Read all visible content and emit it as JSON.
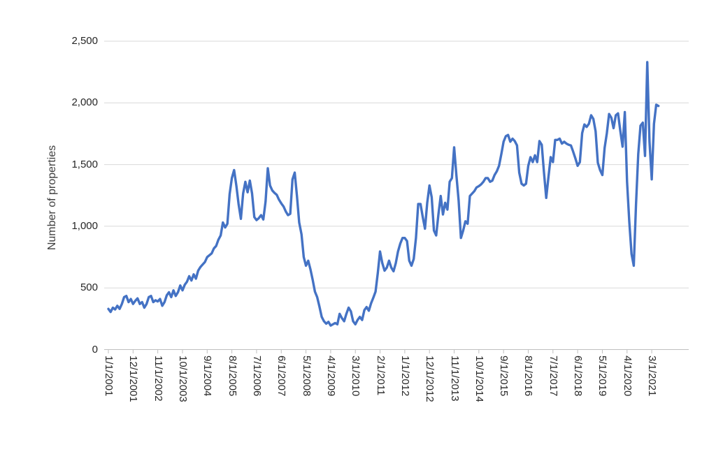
{
  "chart_data": {
    "type": "line",
    "title": "",
    "xlabel": "",
    "ylabel": "Number of properties",
    "ylim": [
      0,
      2500
    ],
    "grid": true,
    "legend": "none",
    "y_tick_labels": [
      "0",
      "500",
      "1,000",
      "1,500",
      "2,000",
      "2,500"
    ],
    "y_tick_values": [
      0,
      500,
      1000,
      1500,
      2000,
      2500
    ],
    "x_tick_labels": [
      "1/1/2001",
      "12/1/2001",
      "11/1/2002",
      "10/1/2003",
      "9/1/2004",
      "8/1/2005",
      "7/1/2006",
      "6/1/2007",
      "5/1/2008",
      "4/1/2009",
      "3/1/2010",
      "2/1/2011",
      "1/1/2012",
      "12/1/2012",
      "11/1/2013",
      "10/1/2014",
      "9/1/2015",
      "8/1/2016",
      "7/1/2017",
      "6/1/2018",
      "5/1/2019",
      "4/1/2020",
      "3/1/2021"
    ],
    "x_tick_month_indices": [
      0,
      11,
      22,
      33,
      44,
      55,
      66,
      77,
      88,
      99,
      110,
      121,
      132,
      143,
      154,
      165,
      176,
      187,
      198,
      209,
      220,
      231,
      242
    ],
    "x_start": "1/1/2001",
    "x_frequency": "monthly",
    "series": [
      {
        "name": "Number of properties",
        "color": "#4472C4",
        "values": [
          330,
          305,
          340,
          325,
          355,
          330,
          370,
          425,
          435,
          385,
          410,
          370,
          395,
          415,
          370,
          385,
          340,
          370,
          425,
          435,
          385,
          400,
          390,
          410,
          355,
          385,
          440,
          465,
          425,
          480,
          435,
          465,
          520,
          480,
          525,
          550,
          595,
          560,
          610,
          575,
          640,
          670,
          690,
          710,
          750,
          765,
          780,
          820,
          840,
          890,
          925,
          1030,
          990,
          1020,
          1260,
          1390,
          1455,
          1330,
          1180,
          1060,
          1265,
          1360,
          1275,
          1370,
          1265,
          1075,
          1050,
          1065,
          1090,
          1055,
          1200,
          1470,
          1330,
          1290,
          1270,
          1255,
          1215,
          1185,
          1160,
          1120,
          1090,
          1100,
          1380,
          1435,
          1245,
          1030,
          935,
          750,
          680,
          720,
          650,
          565,
          470,
          425,
          350,
          265,
          230,
          210,
          225,
          195,
          205,
          215,
          205,
          290,
          255,
          230,
          290,
          340,
          310,
          230,
          205,
          240,
          265,
          240,
          320,
          345,
          315,
          375,
          420,
          470,
          620,
          795,
          700,
          640,
          665,
          720,
          665,
          635,
          700,
          795,
          860,
          905,
          905,
          880,
          720,
          680,
          735,
          905,
          1180,
          1180,
          1075,
          980,
          1190,
          1330,
          1235,
          965,
          925,
          1095,
          1245,
          1095,
          1190,
          1135,
          1360,
          1390,
          1640,
          1415,
          1210,
          905,
          965,
          1040,
          1020,
          1245,
          1265,
          1285,
          1315,
          1325,
          1340,
          1360,
          1390,
          1390,
          1360,
          1370,
          1415,
          1445,
          1490,
          1585,
          1685,
          1730,
          1740,
          1685,
          1710,
          1690,
          1655,
          1435,
          1345,
          1330,
          1345,
          1490,
          1560,
          1520,
          1575,
          1520,
          1690,
          1660,
          1435,
          1230,
          1400,
          1560,
          1520,
          1700,
          1700,
          1710,
          1670,
          1685,
          1670,
          1660,
          1655,
          1605,
          1550,
          1490,
          1520,
          1755,
          1825,
          1805,
          1830,
          1900,
          1870,
          1770,
          1515,
          1455,
          1415,
          1635,
          1755,
          1910,
          1880,
          1795,
          1900,
          1915,
          1775,
          1645,
          1925,
          1360,
          1035,
          775,
          680,
          1175,
          1585,
          1815,
          1840,
          1570,
          2330,
          1685,
          1380,
          1830,
          1985,
          1975
        ]
      }
    ]
  },
  "colors": {
    "line": "#4472C4",
    "gridline": "#D9D9D9",
    "axis_line": "#BFBFBF",
    "tick": "#BFBFBF",
    "label_text": "#262626",
    "title_text": "#3F3F3F",
    "background": "#FFFFFF"
  }
}
